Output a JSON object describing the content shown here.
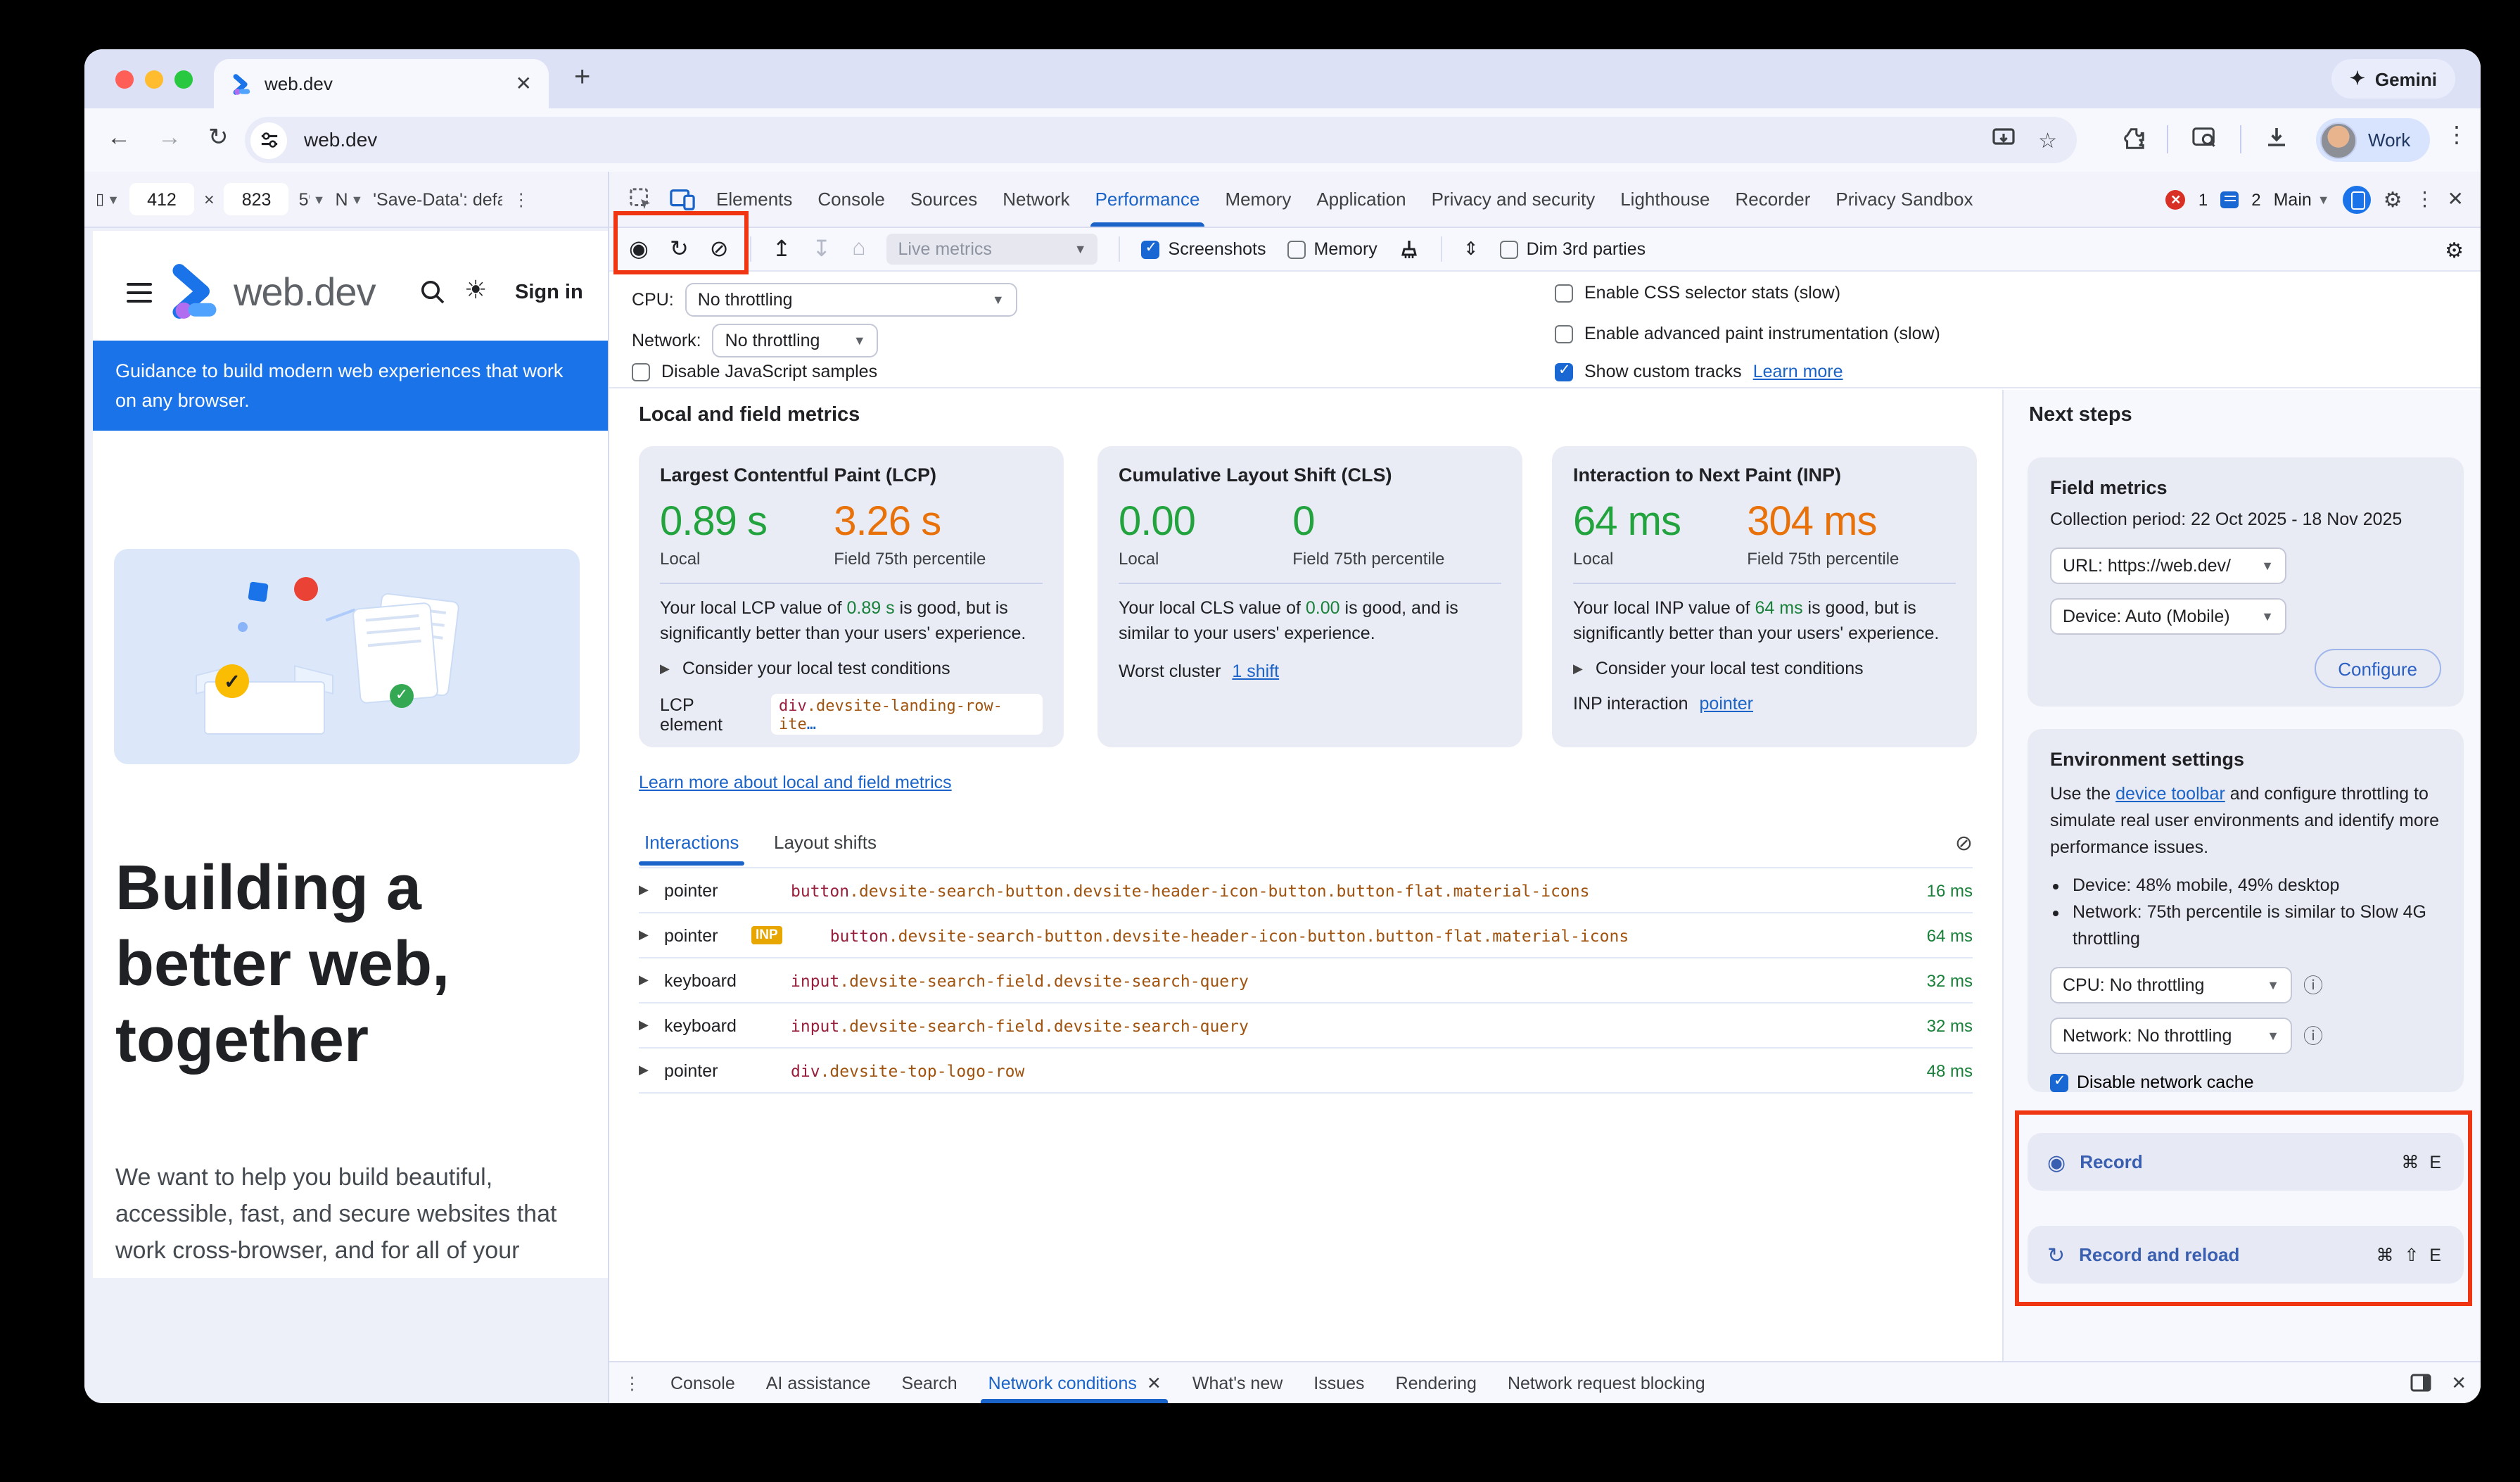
{
  "colors": {
    "accent": "#1a63c8",
    "good": "#23a33e",
    "needs_improvement": "#e8710a",
    "annotation_red": "#f03512",
    "inp_badge": "#e7a600",
    "banner_blue": "#1a73e8"
  },
  "chrome": {
    "tab_title": "web.dev",
    "gemini_label": "Gemini",
    "url": "web.dev",
    "profile_label": "Work"
  },
  "emulation": {
    "width": "412",
    "height": "823",
    "save_data": "'Save-Data': defau"
  },
  "webpage": {
    "logo_text": "web.dev",
    "sign_in": "Sign in",
    "banner": "Guidance to build modern web experiences that work on any browser.",
    "heading_lines": [
      "Building a",
      "better web,",
      "together"
    ],
    "body": "We want to help you build beautiful, accessible, fast, and secure websites that work cross-browser, and for all of your"
  },
  "devtools": {
    "tabs": [
      "Elements",
      "Console",
      "Sources",
      "Network",
      "Performance",
      "Memory",
      "Application",
      "Privacy and security",
      "Lighthouse",
      "Recorder",
      "Privacy Sandbox"
    ],
    "active_tab": "Performance",
    "error_count": "1",
    "message_count": "2",
    "main_label": "Main",
    "toolbar": {
      "live_metrics": "Live metrics",
      "screenshots": "Screenshots",
      "memory": "Memory",
      "dim_3rd": "Dim 3rd parties"
    },
    "settings": {
      "cpu_label": "CPU:",
      "cpu_value": "No throttling",
      "network_label": "Network:",
      "network_value": "No throttling",
      "disable_js": "Disable JavaScript samples",
      "css_stats": "Enable CSS selector stats (slow)",
      "adv_paint": "Enable advanced paint instrumentation (slow)",
      "custom_tracks": "Show custom tracks",
      "learn_more": "Learn more"
    }
  },
  "metrics": {
    "heading": "Local and field metrics",
    "learn_link": "Learn more about local and field metrics",
    "cards": [
      {
        "title": "Largest Contentful Paint (LCP)",
        "local": "0.89 s",
        "field": "3.26 s",
        "local_label": "Local",
        "field_label": "Field 75th percentile",
        "body_pre": "Your local LCP value of ",
        "body_val": "0.89 s",
        "body_post": " is good, but is significantly better than your users' experience.",
        "expander": "Consider your local test conditions",
        "extra_label": "LCP element",
        "code_tag": "div",
        "code_rest": ".devsite-landing-row-ite",
        "code_ellipsis": "…"
      },
      {
        "title": "Cumulative Layout Shift (CLS)",
        "local": "0.00",
        "field": "0",
        "local_label": "Local",
        "field_label": "Field 75th percentile",
        "body_pre": "Your local CLS value of ",
        "body_val": "0.00",
        "body_post": " is good, and is similar to your users' experience.",
        "extra_label": "Worst cluster",
        "extra_link": "1 shift"
      },
      {
        "title": "Interaction to Next Paint (INP)",
        "local": "64 ms",
        "field": "304 ms",
        "local_label": "Local",
        "field_label": "Field 75th percentile",
        "body_pre": "Your local INP value of ",
        "body_val": "64 ms",
        "body_post": " is good, but is significantly better than your users' experience.",
        "expander": "Consider your local test conditions",
        "extra_label": "INP interaction",
        "extra_link": "pointer"
      }
    ]
  },
  "interactions": {
    "tab_interactions": "Interactions",
    "tab_layout_shifts": "Layout shifts",
    "rows": [
      {
        "type": "pointer",
        "badge": "",
        "tag": "button",
        "rest": ".devsite-search-button.devsite-header-icon-button.button-flat.material-icons",
        "time": "16 ms"
      },
      {
        "type": "pointer",
        "badge": "INP",
        "tag": "button",
        "rest": ".devsite-search-button.devsite-header-icon-button.button-flat.material-icons",
        "time": "64 ms"
      },
      {
        "type": "keyboard",
        "badge": "",
        "tag": "input",
        "rest": ".devsite-search-field.devsite-search-query",
        "time": "32 ms"
      },
      {
        "type": "keyboard",
        "badge": "",
        "tag": "input",
        "rest": ".devsite-search-field.devsite-search-query",
        "time": "32 ms"
      },
      {
        "type": "pointer",
        "badge": "",
        "tag": "div",
        "rest": ".devsite-top-logo-row",
        "time": "48 ms"
      }
    ]
  },
  "next_steps": {
    "heading": "Next steps",
    "field_metrics": {
      "title": "Field metrics",
      "period": "Collection period: 22 Oct 2025 - 18 Nov 2025",
      "url_value": "URL: https://web.dev/",
      "device_value": "Device: Auto (Mobile)",
      "configure": "Configure"
    },
    "environment": {
      "title": "Environment settings",
      "desc_pre": "Use the ",
      "desc_link": "device toolbar",
      "desc_post": " and configure throttling to simulate real user environments and identify more performance issues.",
      "bullet_device": "Device: 48% mobile, 49% desktop",
      "bullet_network": "Network: 75th percentile is similar to Slow 4G throttling",
      "cpu_value": "CPU: No throttling",
      "network_value": "Network: No throttling",
      "disable_cache": "Disable network cache"
    },
    "record": {
      "label": "Record",
      "shortcut": "⌘ E",
      "label_reload": "Record and reload",
      "shortcut_reload": "⌘ ⇧ E"
    }
  },
  "drawer": {
    "items": [
      "Console",
      "AI assistance",
      "Search",
      "Network conditions",
      "What's new",
      "Issues",
      "Rendering",
      "Network request blocking"
    ],
    "active": "Network conditions"
  }
}
